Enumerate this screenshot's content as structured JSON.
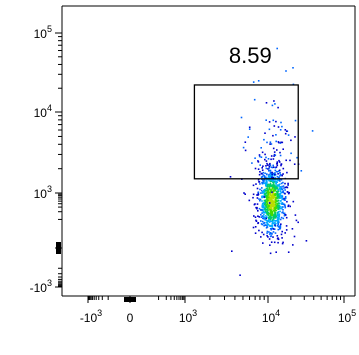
{
  "chart_data": {
    "type": "scatter",
    "plot_style": "flow-cytometry density dot plot (biexponential axes)",
    "title": "",
    "xlabel": "",
    "ylabel": "",
    "x_axis": {
      "scale": "biexponential",
      "ticks": [
        {
          "base": "-10",
          "exp": "3",
          "value": -1000
        },
        {
          "base": "0",
          "exp": "",
          "value": 0
        },
        {
          "base": "10",
          "exp": "3",
          "value": 1000
        },
        {
          "base": "10",
          "exp": "4",
          "value": 10000
        },
        {
          "base": "10",
          "exp": "5",
          "value": 100000
        }
      ]
    },
    "y_axis": {
      "scale": "biexponential",
      "ticks": [
        {
          "base": "-10",
          "exp": "3",
          "value": -1000
        },
        {
          "base": "10",
          "exp": "3",
          "value": 1000
        },
        {
          "base": "10",
          "exp": "4",
          "value": 10000
        },
        {
          "base": "10",
          "exp": "5",
          "value": 100000
        }
      ]
    },
    "gate": {
      "label": "8.59",
      "x_range": [
        1300,
        25000
      ],
      "y_range": [
        1500,
        22000
      ]
    },
    "population": {
      "center": {
        "x": 11000,
        "y": 550
      },
      "spread_note": "dense core near x≈10^4, y≈500; sparse tail up to y≈10^4",
      "density_colors": [
        "#0000cc",
        "#0066ff",
        "#00aaff",
        "#00cc66",
        "#44dd00",
        "#bbdd00"
      ]
    },
    "grid": false,
    "legend": "none"
  }
}
